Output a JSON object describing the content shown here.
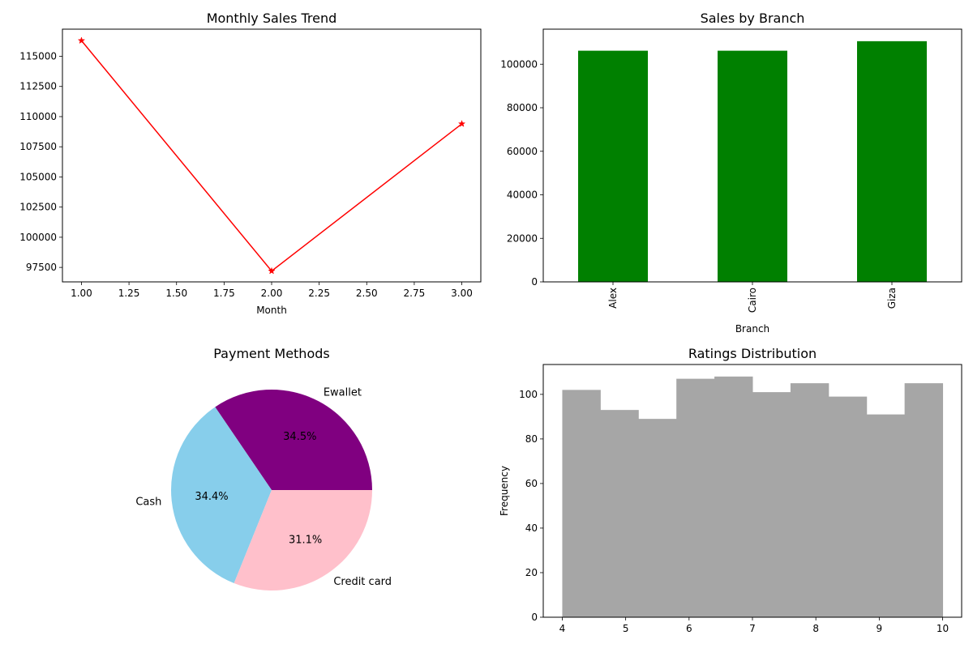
{
  "chart_data": [
    {
      "type": "line",
      "title": "Monthly Sales Trend",
      "xlabel": "Month",
      "ylabel": "",
      "x": [
        1,
        2,
        3
      ],
      "series": [
        {
          "values": [
            116300,
            97200,
            109400
          ],
          "color": "#ff0000",
          "marker": "star"
        }
      ],
      "xlim": [
        0.9,
        3.1
      ],
      "ylim": [
        96300,
        117250
      ],
      "xticks": [
        1.0,
        1.25,
        1.5,
        1.75,
        2.0,
        2.25,
        2.5,
        2.75,
        3.0
      ],
      "xtick_labels": [
        "1.00",
        "1.25",
        "1.50",
        "1.75",
        "2.00",
        "2.25",
        "2.50",
        "2.75",
        "3.00"
      ],
      "yticks": [
        97500,
        100000,
        102500,
        105000,
        107500,
        110000,
        112500,
        115000
      ],
      "ytick_labels": [
        "97500",
        "100000",
        "102500",
        "105000",
        "107500",
        "110000",
        "112500",
        "115000"
      ],
      "grid": false
    },
    {
      "type": "bar",
      "title": "Sales by Branch",
      "xlabel": "Branch",
      "ylabel": "",
      "categories": [
        "Alex",
        "Cairo",
        "Giza"
      ],
      "values": [
        106200,
        106200,
        110570
      ],
      "color": "#008000",
      "ylim": [
        0,
        116100
      ],
      "yticks": [
        0,
        20000,
        40000,
        60000,
        80000,
        100000
      ],
      "ytick_labels": [
        "0",
        "20000",
        "40000",
        "60000",
        "80000",
        "100000"
      ],
      "xtick_rotation": 90,
      "grid": false
    },
    {
      "type": "pie",
      "title": "Payment Methods",
      "labels": [
        "Ewallet",
        "Cash",
        "Credit card"
      ],
      "values": [
        34.5,
        34.4,
        31.1
      ],
      "value_labels": [
        "34.5%",
        "34.4%",
        "31.1%"
      ],
      "colors": [
        "#800080",
        "#87ceeb",
        "#ffc0cb"
      ]
    },
    {
      "type": "bar",
      "subtype": "histogram",
      "title": "Ratings Distribution",
      "xlabel": "",
      "ylabel": "Frequency",
      "bin_edges": [
        4.0,
        4.6,
        5.2,
        5.8,
        6.4,
        7.0,
        7.6,
        8.2,
        8.8,
        9.4,
        10.0
      ],
      "values": [
        102,
        93,
        89,
        107,
        108,
        101,
        105,
        99,
        91,
        105
      ],
      "color": "#a6a6a6",
      "xlim": [
        3.7,
        10.3
      ],
      "ylim": [
        0,
        113.4
      ],
      "xticks": [
        4,
        5,
        6,
        7,
        8,
        9,
        10
      ],
      "xtick_labels": [
        "4",
        "5",
        "6",
        "7",
        "8",
        "9",
        "10"
      ],
      "yticks": [
        0,
        20,
        40,
        60,
        80,
        100
      ],
      "ytick_labels": [
        "0",
        "20",
        "40",
        "60",
        "80",
        "100"
      ],
      "grid": false
    }
  ]
}
